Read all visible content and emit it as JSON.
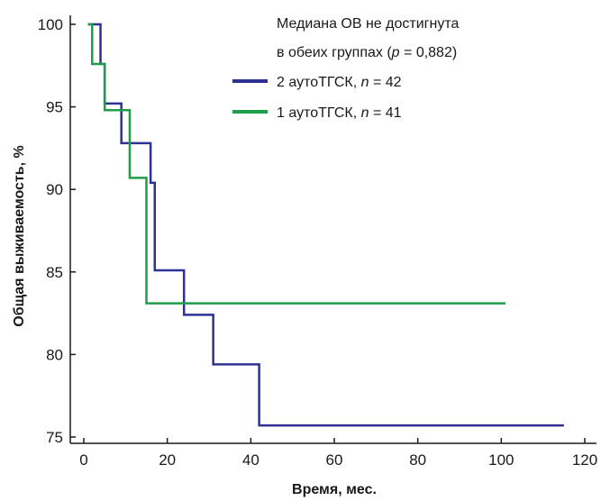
{
  "chart_data": {
    "type": "line",
    "step": true,
    "xlabel": "Время, мес.",
    "ylabel": "Общая выживаемость, %",
    "xlim": [
      0,
      120
    ],
    "ylim": [
      75,
      100
    ],
    "xticks": [
      "0",
      "20",
      "40",
      "60",
      "80",
      "100",
      "120"
    ],
    "yticks": [
      "75",
      "80",
      "85",
      "90",
      "95",
      "100"
    ],
    "grid": false,
    "annotation": {
      "line1": "Медиана ОВ не достигнута",
      "line2_pre": "в обеих группах (",
      "line2_p": "p",
      "line2_post": " = 0,882)"
    },
    "legend_position": "top-right",
    "series": [
      {
        "name_pre": "2 аутоТГСК, ",
        "name_n": "n",
        "name_post": " = 42",
        "color": "#2e3192",
        "x": [
          1,
          4,
          5,
          9,
          16,
          17,
          24,
          31,
          42,
          115
        ],
        "y": [
          100,
          97.6,
          95.2,
          92.8,
          90.4,
          85.1,
          82.4,
          79.4,
          75.7,
          75.7
        ]
      },
      {
        "name_pre": "1 аутоТГСК, ",
        "name_n": "n",
        "name_post": " = 41",
        "color": "#1e9e4a",
        "x": [
          1,
          2,
          5,
          11,
          15,
          101
        ],
        "y": [
          100,
          97.6,
          94.8,
          90.7,
          83.1,
          83.1
        ]
      }
    ]
  }
}
